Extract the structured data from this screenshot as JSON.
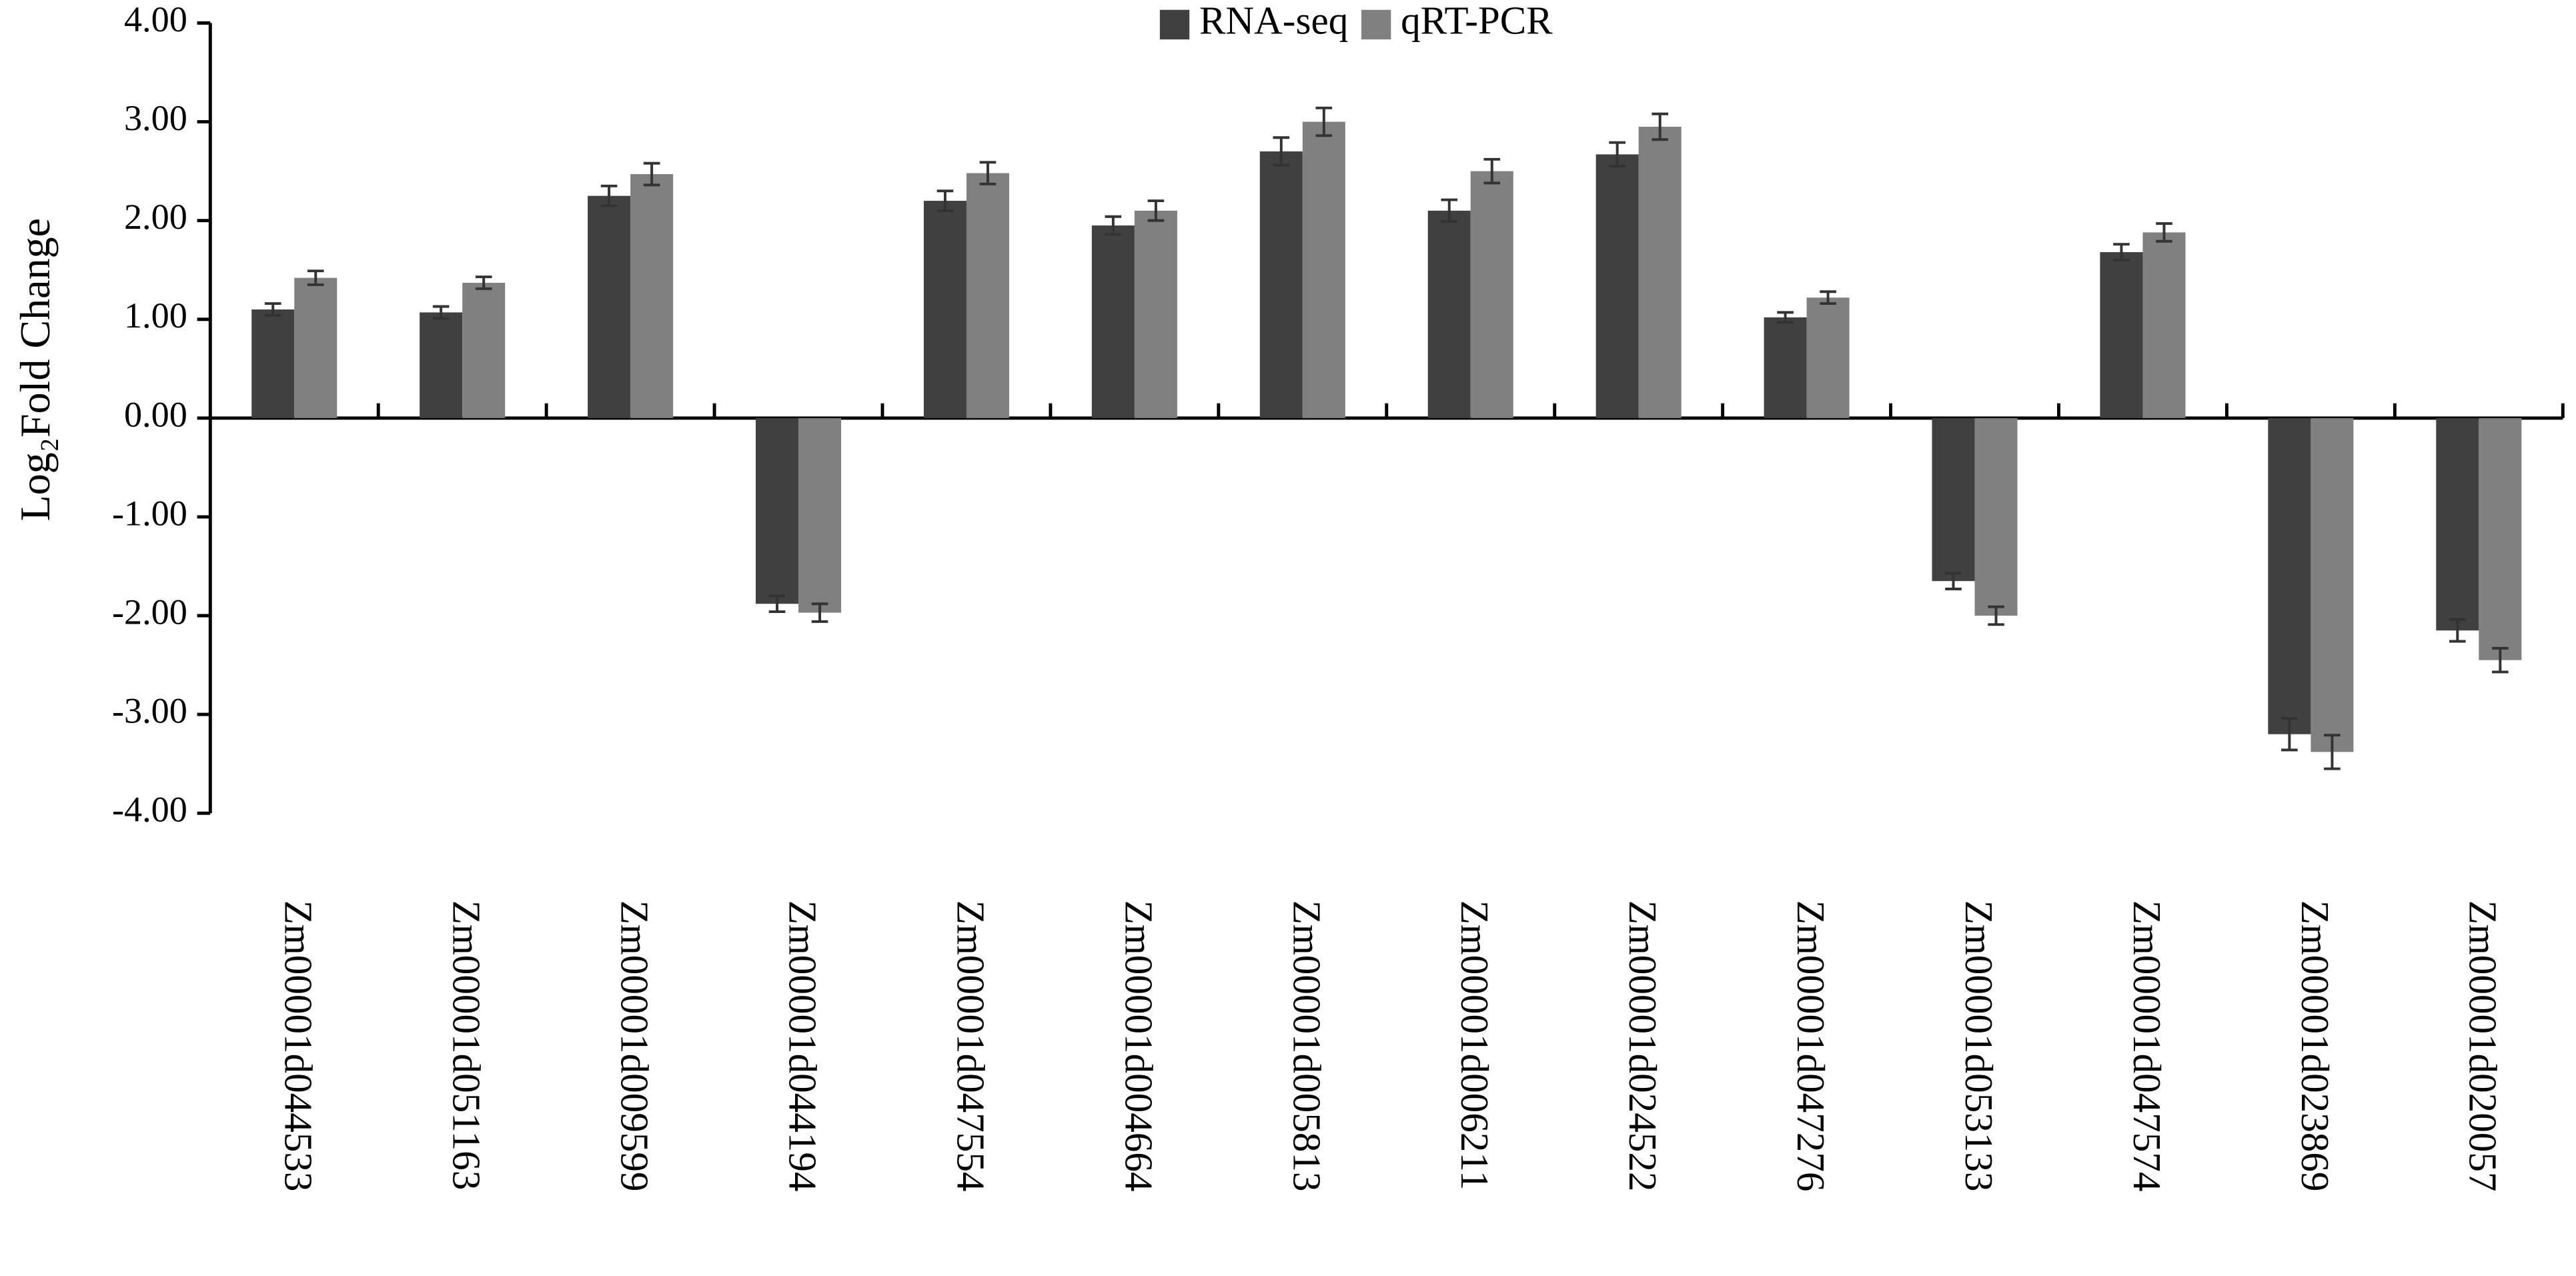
{
  "chart_data": {
    "type": "bar",
    "ylabel": "Log₂Fold Change",
    "categories": [
      "Zm00001d044533",
      "Zm00001d051163",
      "Zm00001d009599",
      "Zm00001d044194",
      "Zm00001d047554",
      "Zm00001d004664",
      "Zm00001d005813",
      "Zm00001d006211",
      "Zm00001d024522",
      "Zm00001d047276",
      "Zm00001d053133",
      "Zm00001d047574",
      "Zm00001d023869",
      "Zm00001d020057"
    ],
    "series": [
      {
        "name": "RNA-seq",
        "color": "#404040",
        "values": [
          1.1,
          1.07,
          2.25,
          -1.88,
          2.2,
          1.95,
          2.7,
          2.1,
          2.67,
          1.02,
          -1.65,
          1.68,
          -3.2,
          -2.15
        ],
        "errors": [
          0.06,
          0.06,
          0.1,
          0.08,
          0.1,
          0.09,
          0.14,
          0.11,
          0.12,
          0.05,
          0.08,
          0.08,
          0.16,
          0.11
        ]
      },
      {
        "name": "qRT-PCR",
        "color": "#808080",
        "values": [
          1.42,
          1.37,
          2.47,
          -1.97,
          2.48,
          2.1,
          3.0,
          2.5,
          2.95,
          1.22,
          -2.0,
          1.88,
          -3.38,
          -2.45
        ],
        "errors": [
          0.07,
          0.06,
          0.11,
          0.09,
          0.11,
          0.1,
          0.14,
          0.12,
          0.13,
          0.06,
          0.09,
          0.09,
          0.17,
          0.12
        ]
      }
    ],
    "ylim": [
      -4,
      4
    ],
    "yticks": [
      {
        "value": -4,
        "label": "-4.00"
      },
      {
        "value": -3,
        "label": "-3.00"
      },
      {
        "value": -2,
        "label": "-2.00"
      },
      {
        "value": -1,
        "label": "-1.00"
      },
      {
        "value": 0,
        "label": "0.00"
      },
      {
        "value": 1,
        "label": "1.00"
      },
      {
        "value": 2,
        "label": "2.00"
      },
      {
        "value": 3,
        "label": "3.00"
      },
      {
        "value": 4,
        "label": "4.00"
      }
    ],
    "legend": "top"
  }
}
